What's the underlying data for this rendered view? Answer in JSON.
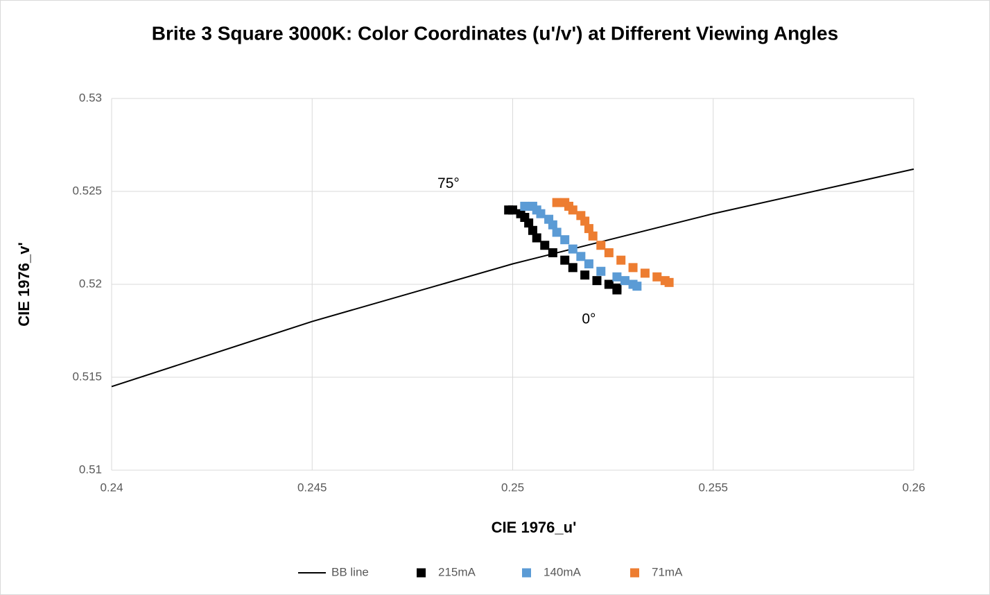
{
  "chart_data": {
    "type": "scatter",
    "title": "Brite 3 Square 3000K: Color Coordinates (u'/v') at Different Viewing Angles",
    "xlabel": "CIE 1976_u'",
    "ylabel": "CIE 1976_v'",
    "xlim": [
      0.24,
      0.26
    ],
    "xticks": [
      0.24,
      0.245,
      0.25,
      0.255,
      0.26
    ],
    "ylim": [
      0.51,
      0.53
    ],
    "yticks": [
      0.51,
      0.515,
      0.52,
      0.525,
      0.53
    ],
    "grid": true,
    "legend": "bottom",
    "annotations": [
      {
        "text": "75°",
        "x": 0.2484,
        "y": 0.5254
      },
      {
        "text": "0°",
        "x": 0.2519,
        "y": 0.5181
      }
    ],
    "series": [
      {
        "name": "BB line",
        "kind": "line",
        "color": "#000000",
        "x": [
          0.24,
          0.245,
          0.25,
          0.255,
          0.26
        ],
        "values": [
          0.5145,
          0.518,
          0.5211,
          0.5238,
          0.5262
        ]
      },
      {
        "name": "215mA",
        "kind": "marker",
        "color": "#000000",
        "x": [
          0.2499,
          0.25,
          0.2502,
          0.2503,
          0.2504,
          0.2505,
          0.2506,
          0.2508,
          0.251,
          0.2513,
          0.2515,
          0.2518,
          0.2521,
          0.2524,
          0.2526,
          0.2526
        ],
        "values": [
          0.524,
          0.524,
          0.5238,
          0.5236,
          0.5233,
          0.5229,
          0.5225,
          0.5221,
          0.5217,
          0.5213,
          0.5209,
          0.5205,
          0.5202,
          0.52,
          0.5197,
          0.5198
        ]
      },
      {
        "name": "140mA",
        "kind": "marker",
        "color": "#5b9bd5",
        "x": [
          0.2503,
          0.2505,
          0.2506,
          0.2507,
          0.2509,
          0.251,
          0.2511,
          0.2513,
          0.2515,
          0.2517,
          0.2519,
          0.2522,
          0.2526,
          0.2528,
          0.253,
          0.2531
        ],
        "values": [
          0.5242,
          0.5242,
          0.524,
          0.5238,
          0.5235,
          0.5232,
          0.5228,
          0.5224,
          0.5219,
          0.5215,
          0.5211,
          0.5207,
          0.5204,
          0.5202,
          0.52,
          0.5199
        ]
      },
      {
        "name": "71mA",
        "kind": "marker",
        "color": "#ed7d31",
        "x": [
          0.2511,
          0.2513,
          0.2514,
          0.2515,
          0.2517,
          0.2518,
          0.2519,
          0.252,
          0.2522,
          0.2524,
          0.2527,
          0.253,
          0.2533,
          0.2536,
          0.2538,
          0.2539
        ],
        "values": [
          0.5244,
          0.5244,
          0.5242,
          0.524,
          0.5237,
          0.5234,
          0.523,
          0.5226,
          0.5221,
          0.5217,
          0.5213,
          0.5209,
          0.5206,
          0.5204,
          0.5202,
          0.5201
        ]
      }
    ]
  }
}
